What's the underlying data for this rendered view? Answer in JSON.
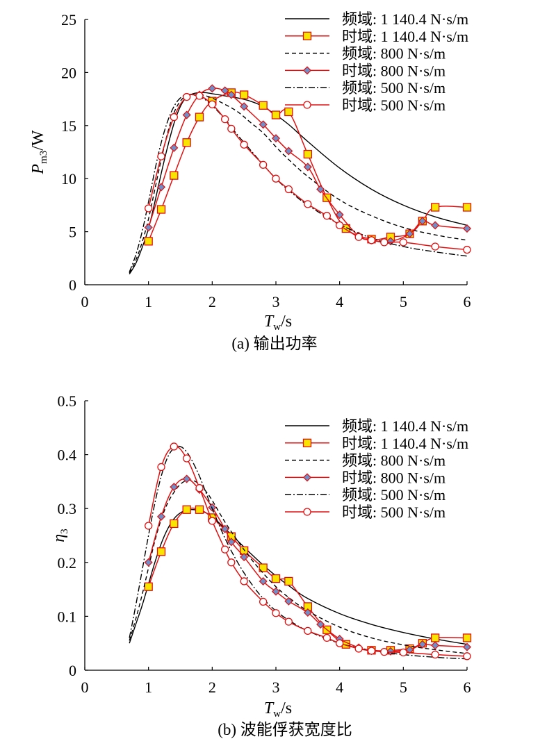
{
  "chart_data": [
    {
      "type": "line",
      "caption": "(a) 输出功率",
      "ylabel_main": "P",
      "ylabel_sub": "m3",
      "ylabel_unit": "/W",
      "xlabel_main": "T",
      "xlabel_sub": "w",
      "xlabel_unit": "/s",
      "xlim": [
        0,
        6
      ],
      "ylim": [
        0,
        25
      ],
      "xticks": [
        0,
        1,
        2,
        3,
        4,
        5,
        6
      ],
      "yticks": [
        0,
        5,
        10,
        15,
        20,
        25
      ],
      "legend_position": "top-right",
      "grid": false,
      "series": [
        {
          "name": "频域: 1 140.4 N·s/m",
          "style": "solid",
          "marker": "none",
          "x": [
            0.7,
            0.8,
            0.9,
            1.0,
            1.1,
            1.2,
            1.3,
            1.4,
            1.5,
            1.6,
            1.7,
            1.8,
            1.9,
            2.0,
            2.1,
            2.2,
            2.4,
            2.6,
            2.8,
            3.0,
            3.2,
            3.5,
            4.0,
            4.5,
            5.0,
            5.5,
            6.0
          ],
          "y": [
            1.0,
            2.0,
            3.5,
            5.3,
            7.8,
            10.5,
            13.0,
            15.2,
            16.8,
            17.7,
            18.0,
            18.1,
            18.1,
            18.0,
            17.9,
            17.8,
            17.6,
            17.3,
            16.8,
            16.0,
            15.1,
            13.5,
            11.0,
            9.0,
            7.5,
            6.4,
            5.6
          ]
        },
        {
          "name": "时域: 1 140.4 N·s/m",
          "style": "solid",
          "marker": "square",
          "x": [
            1.0,
            1.2,
            1.4,
            1.6,
            1.8,
            2.0,
            2.3,
            2.5,
            2.8,
            3.0,
            3.2,
            3.5,
            3.8,
            4.1,
            4.5,
            4.8,
            5.1,
            5.3,
            5.5,
            6.0
          ],
          "y": [
            4.1,
            7.1,
            10.3,
            13.4,
            15.8,
            17.3,
            18.1,
            17.9,
            16.9,
            16.0,
            16.3,
            12.3,
            8.2,
            5.3,
            4.3,
            4.5,
            4.8,
            6.0,
            7.3,
            7.3
          ]
        },
        {
          "name": "频域: 800 N·s/m",
          "style": "dashed",
          "marker": "none",
          "x": [
            0.7,
            0.8,
            0.9,
            1.0,
            1.1,
            1.2,
            1.3,
            1.4,
            1.5,
            1.6,
            1.7,
            1.8,
            1.9,
            2.0,
            2.1,
            2.2,
            2.4,
            2.6,
            2.8,
            3.0,
            3.2,
            3.5,
            4.0,
            4.5,
            5.0,
            5.5,
            6.0
          ],
          "y": [
            1.1,
            2.3,
            4.0,
            6.2,
            9.0,
            11.8,
            14.3,
            16.2,
            17.3,
            17.8,
            17.9,
            17.9,
            17.8,
            17.6,
            17.3,
            17.0,
            16.3,
            15.3,
            14.3,
            13.0,
            11.8,
            10.2,
            8.0,
            6.5,
            5.4,
            4.7,
            4.2
          ]
        },
        {
          "name": "时域: 800 N·s/m",
          "style": "solid",
          "marker": "diamond",
          "x": [
            1.0,
            1.2,
            1.4,
            1.6,
            1.8,
            2.0,
            2.2,
            2.3,
            2.5,
            2.8,
            3.0,
            3.2,
            3.5,
            3.7,
            4.0,
            4.3,
            4.5,
            4.8,
            5.1,
            5.3,
            5.5,
            6.0
          ],
          "y": [
            5.4,
            9.2,
            12.9,
            16.0,
            17.9,
            18.5,
            18.3,
            17.9,
            16.8,
            15.1,
            13.8,
            12.6,
            11.1,
            9.0,
            6.6,
            4.6,
            4.2,
            4.1,
            4.8,
            6.0,
            5.6,
            5.3
          ]
        },
        {
          "name": "频域: 500 N·s/m",
          "style": "dashdot",
          "marker": "none",
          "x": [
            0.7,
            0.8,
            0.9,
            1.0,
            1.1,
            1.2,
            1.3,
            1.4,
            1.5,
            1.6,
            1.7,
            1.8,
            1.9,
            2.0,
            2.2,
            2.4,
            2.6,
            2.8,
            3.0,
            3.2,
            3.5,
            4.0,
            4.5,
            5.0,
            5.5,
            6.0
          ],
          "y": [
            1.2,
            2.8,
            5.0,
            7.8,
            10.8,
            13.4,
            15.4,
            16.8,
            17.6,
            17.9,
            17.9,
            17.7,
            17.4,
            16.9,
            15.6,
            14.1,
            12.7,
            11.3,
            10.0,
            8.9,
            7.5,
            5.7,
            4.4,
            3.6,
            3.1,
            2.7
          ]
        },
        {
          "name": "时域: 500 N·s/m",
          "style": "solid",
          "marker": "circle",
          "x": [
            1.0,
            1.2,
            1.4,
            1.6,
            1.8,
            2.0,
            2.2,
            2.3,
            2.5,
            2.8,
            3.0,
            3.2,
            3.5,
            3.8,
            4.0,
            4.3,
            4.5,
            4.7,
            5.0,
            5.5,
            6.0
          ],
          "y": [
            7.2,
            12.1,
            15.8,
            17.7,
            17.8,
            17.0,
            15.6,
            14.7,
            13.2,
            11.3,
            10.0,
            9.0,
            7.6,
            6.5,
            5.6,
            4.5,
            4.2,
            4.0,
            4.0,
            3.6,
            3.3
          ]
        }
      ]
    },
    {
      "type": "line",
      "caption": "(b) 波能俘获宽度比",
      "ylabel_main": "η",
      "ylabel_sub": "3",
      "ylabel_unit": "",
      "xlabel_main": "T",
      "xlabel_sub": "w",
      "xlabel_unit": "/s",
      "xlim": [
        0,
        6
      ],
      "ylim": [
        0,
        0.5
      ],
      "xticks": [
        0,
        1,
        2,
        3,
        4,
        5,
        6
      ],
      "yticks": [
        "0",
        "0.1",
        "0.2",
        "0.3",
        "0.4",
        "0.5"
      ],
      "legend_position": "top-right",
      "grid": false,
      "series": [
        {
          "name": "频域: 1 140.4 N·s/m",
          "style": "solid",
          "marker": "none",
          "x": [
            0.7,
            0.8,
            0.9,
            1.0,
            1.1,
            1.2,
            1.3,
            1.4,
            1.5,
            1.6,
            1.7,
            1.8,
            1.9,
            2.0,
            2.2,
            2.4,
            2.6,
            2.8,
            3.0,
            3.2,
            3.5,
            4.0,
            4.5,
            5.0,
            5.5,
            6.0
          ],
          "y": [
            0.05,
            0.085,
            0.12,
            0.16,
            0.2,
            0.235,
            0.262,
            0.281,
            0.292,
            0.297,
            0.298,
            0.296,
            0.292,
            0.285,
            0.263,
            0.24,
            0.217,
            0.195,
            0.175,
            0.157,
            0.133,
            0.105,
            0.085,
            0.07,
            0.058,
            0.048
          ]
        },
        {
          "name": "时域: 1 140.4 N·s/m",
          "style": "solid",
          "marker": "square",
          "x": [
            1.0,
            1.2,
            1.4,
            1.6,
            1.8,
            2.0,
            2.3,
            2.5,
            2.8,
            3.0,
            3.2,
            3.5,
            3.8,
            4.1,
            4.5,
            4.8,
            5.1,
            5.3,
            5.5,
            6.0
          ],
          "y": [
            0.155,
            0.22,
            0.272,
            0.298,
            0.298,
            0.283,
            0.248,
            0.222,
            0.19,
            0.17,
            0.165,
            0.118,
            0.075,
            0.048,
            0.037,
            0.037,
            0.04,
            0.05,
            0.06,
            0.06
          ]
        },
        {
          "name": "频域: 800 N·s/m",
          "style": "dashed",
          "marker": "none",
          "x": [
            0.7,
            0.8,
            0.9,
            1.0,
            1.1,
            1.2,
            1.3,
            1.4,
            1.5,
            1.6,
            1.7,
            1.8,
            1.9,
            2.0,
            2.2,
            2.4,
            2.6,
            2.8,
            3.0,
            3.2,
            3.5,
            4.0,
            4.5,
            5.0,
            5.5,
            6.0
          ],
          "y": [
            0.055,
            0.095,
            0.14,
            0.19,
            0.24,
            0.28,
            0.31,
            0.33,
            0.345,
            0.352,
            0.352,
            0.345,
            0.332,
            0.315,
            0.275,
            0.24,
            0.208,
            0.18,
            0.155,
            0.135,
            0.11,
            0.08,
            0.06,
            0.047,
            0.038,
            0.031
          ]
        },
        {
          "name": "时域: 800 N·s/m",
          "style": "solid",
          "marker": "diamond",
          "x": [
            1.0,
            1.2,
            1.4,
            1.6,
            1.8,
            2.0,
            2.2,
            2.3,
            2.5,
            2.8,
            3.0,
            3.2,
            3.5,
            3.7,
            4.0,
            4.3,
            4.5,
            4.8,
            5.1,
            5.3,
            5.5,
            6.0
          ],
          "y": [
            0.2,
            0.285,
            0.34,
            0.355,
            0.335,
            0.302,
            0.262,
            0.238,
            0.21,
            0.165,
            0.146,
            0.128,
            0.107,
            0.085,
            0.058,
            0.042,
            0.036,
            0.035,
            0.038,
            0.048,
            0.046,
            0.043
          ]
        },
        {
          "name": "频域: 500 N·s/m",
          "style": "dashdot",
          "marker": "none",
          "x": [
            0.7,
            0.8,
            0.9,
            1.0,
            1.1,
            1.2,
            1.3,
            1.4,
            1.5,
            1.6,
            1.7,
            1.8,
            1.9,
            2.0,
            2.2,
            2.4,
            2.6,
            2.8,
            3.0,
            3.2,
            3.5,
            4.0,
            4.5,
            5.0,
            5.5,
            6.0
          ],
          "y": [
            0.06,
            0.12,
            0.185,
            0.25,
            0.31,
            0.36,
            0.395,
            0.412,
            0.415,
            0.405,
            0.385,
            0.36,
            0.33,
            0.3,
            0.245,
            0.2,
            0.163,
            0.133,
            0.11,
            0.093,
            0.073,
            0.05,
            0.037,
            0.029,
            0.024,
            0.021
          ]
        },
        {
          "name": "时域: 500 N·s/m",
          "style": "solid",
          "marker": "circle",
          "x": [
            1.0,
            1.2,
            1.4,
            1.6,
            1.8,
            2.0,
            2.2,
            2.3,
            2.5,
            2.8,
            3.0,
            3.2,
            3.5,
            3.8,
            4.0,
            4.3,
            4.5,
            4.7,
            5.0,
            5.5,
            6.0
          ],
          "y": [
            0.268,
            0.377,
            0.415,
            0.393,
            0.338,
            0.277,
            0.224,
            0.2,
            0.165,
            0.127,
            0.106,
            0.09,
            0.073,
            0.06,
            0.05,
            0.04,
            0.036,
            0.034,
            0.033,
            0.029,
            0.026
          ]
        }
      ]
    }
  ],
  "colors": {
    "freq_line": "#000000",
    "time_line": "#e01010",
    "square_fill": "#f8e400",
    "diamond_fill": "#6f8fc8",
    "circle_fill": "#ffffff"
  }
}
